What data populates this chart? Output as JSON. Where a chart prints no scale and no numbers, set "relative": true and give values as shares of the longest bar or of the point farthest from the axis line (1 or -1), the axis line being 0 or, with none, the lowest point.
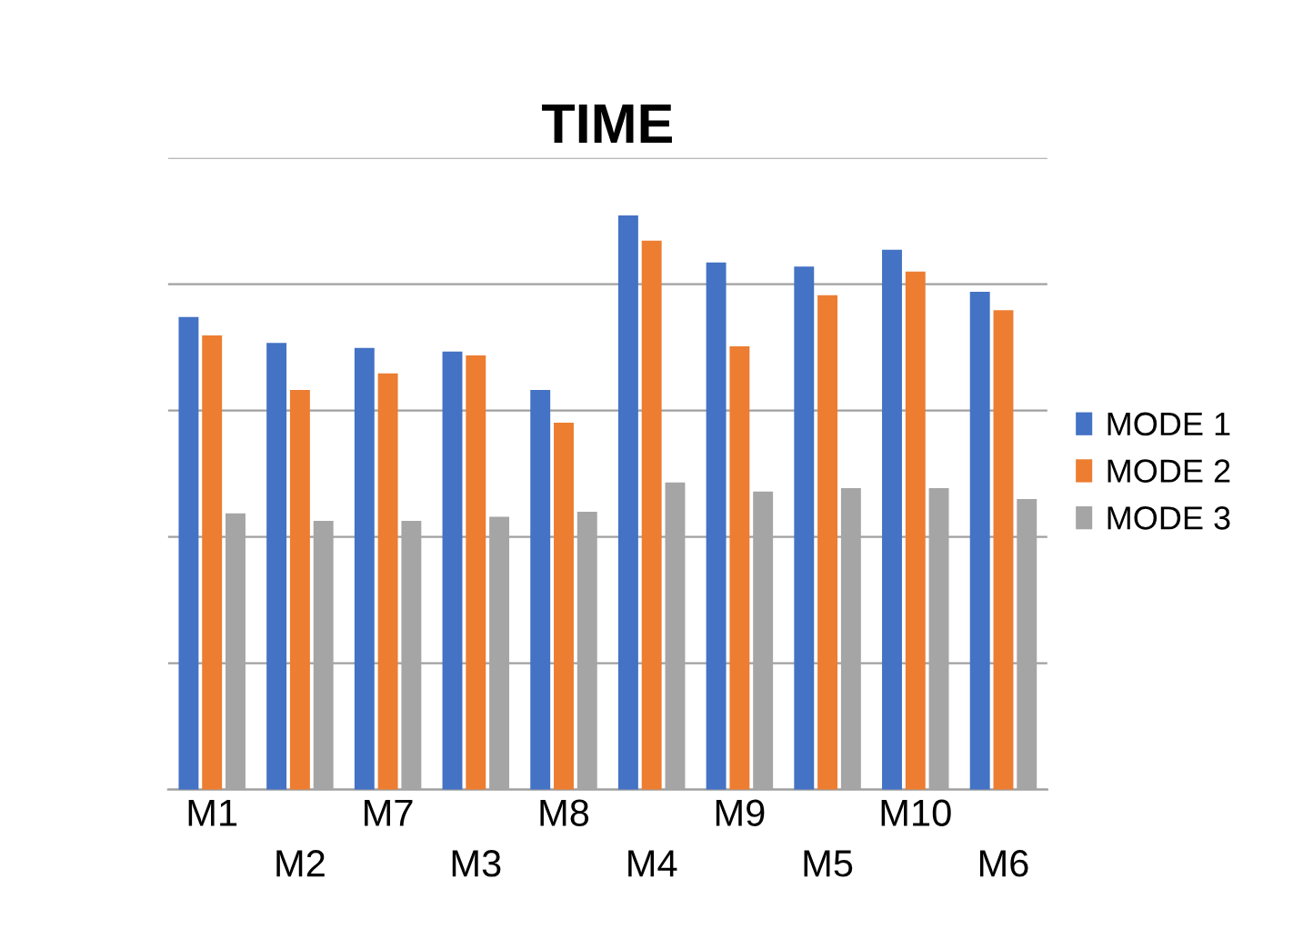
{
  "chart_data": {
    "type": "bar",
    "title": "TIME",
    "relative": true,
    "grid": "y",
    "legend": "right",
    "categories": [
      "M1",
      "M2",
      "M7",
      "M3",
      "M8",
      "M4",
      "M9",
      "M5",
      "M10",
      "M6"
    ],
    "series": [
      {
        "name": "MODE 1",
        "color": "#4472c4",
        "values": [
          0.823,
          0.778,
          0.769,
          0.763,
          0.696,
          1,
          0.918,
          0.911,
          0.94,
          0.867
        ]
      },
      {
        "name": "MODE 2",
        "color": "#ed7d31",
        "values": [
          0.791,
          0.696,
          0.725,
          0.756,
          0.639,
          0.956,
          0.772,
          0.861,
          0.902,
          0.835
        ]
      },
      {
        "name": "MODE 3",
        "color": "#a5a5a5",
        "values": [
          0.481,
          0.468,
          0.468,
          0.475,
          0.484,
          0.535,
          0.519,
          0.525,
          0.525,
          0.506
        ]
      }
    ]
  }
}
